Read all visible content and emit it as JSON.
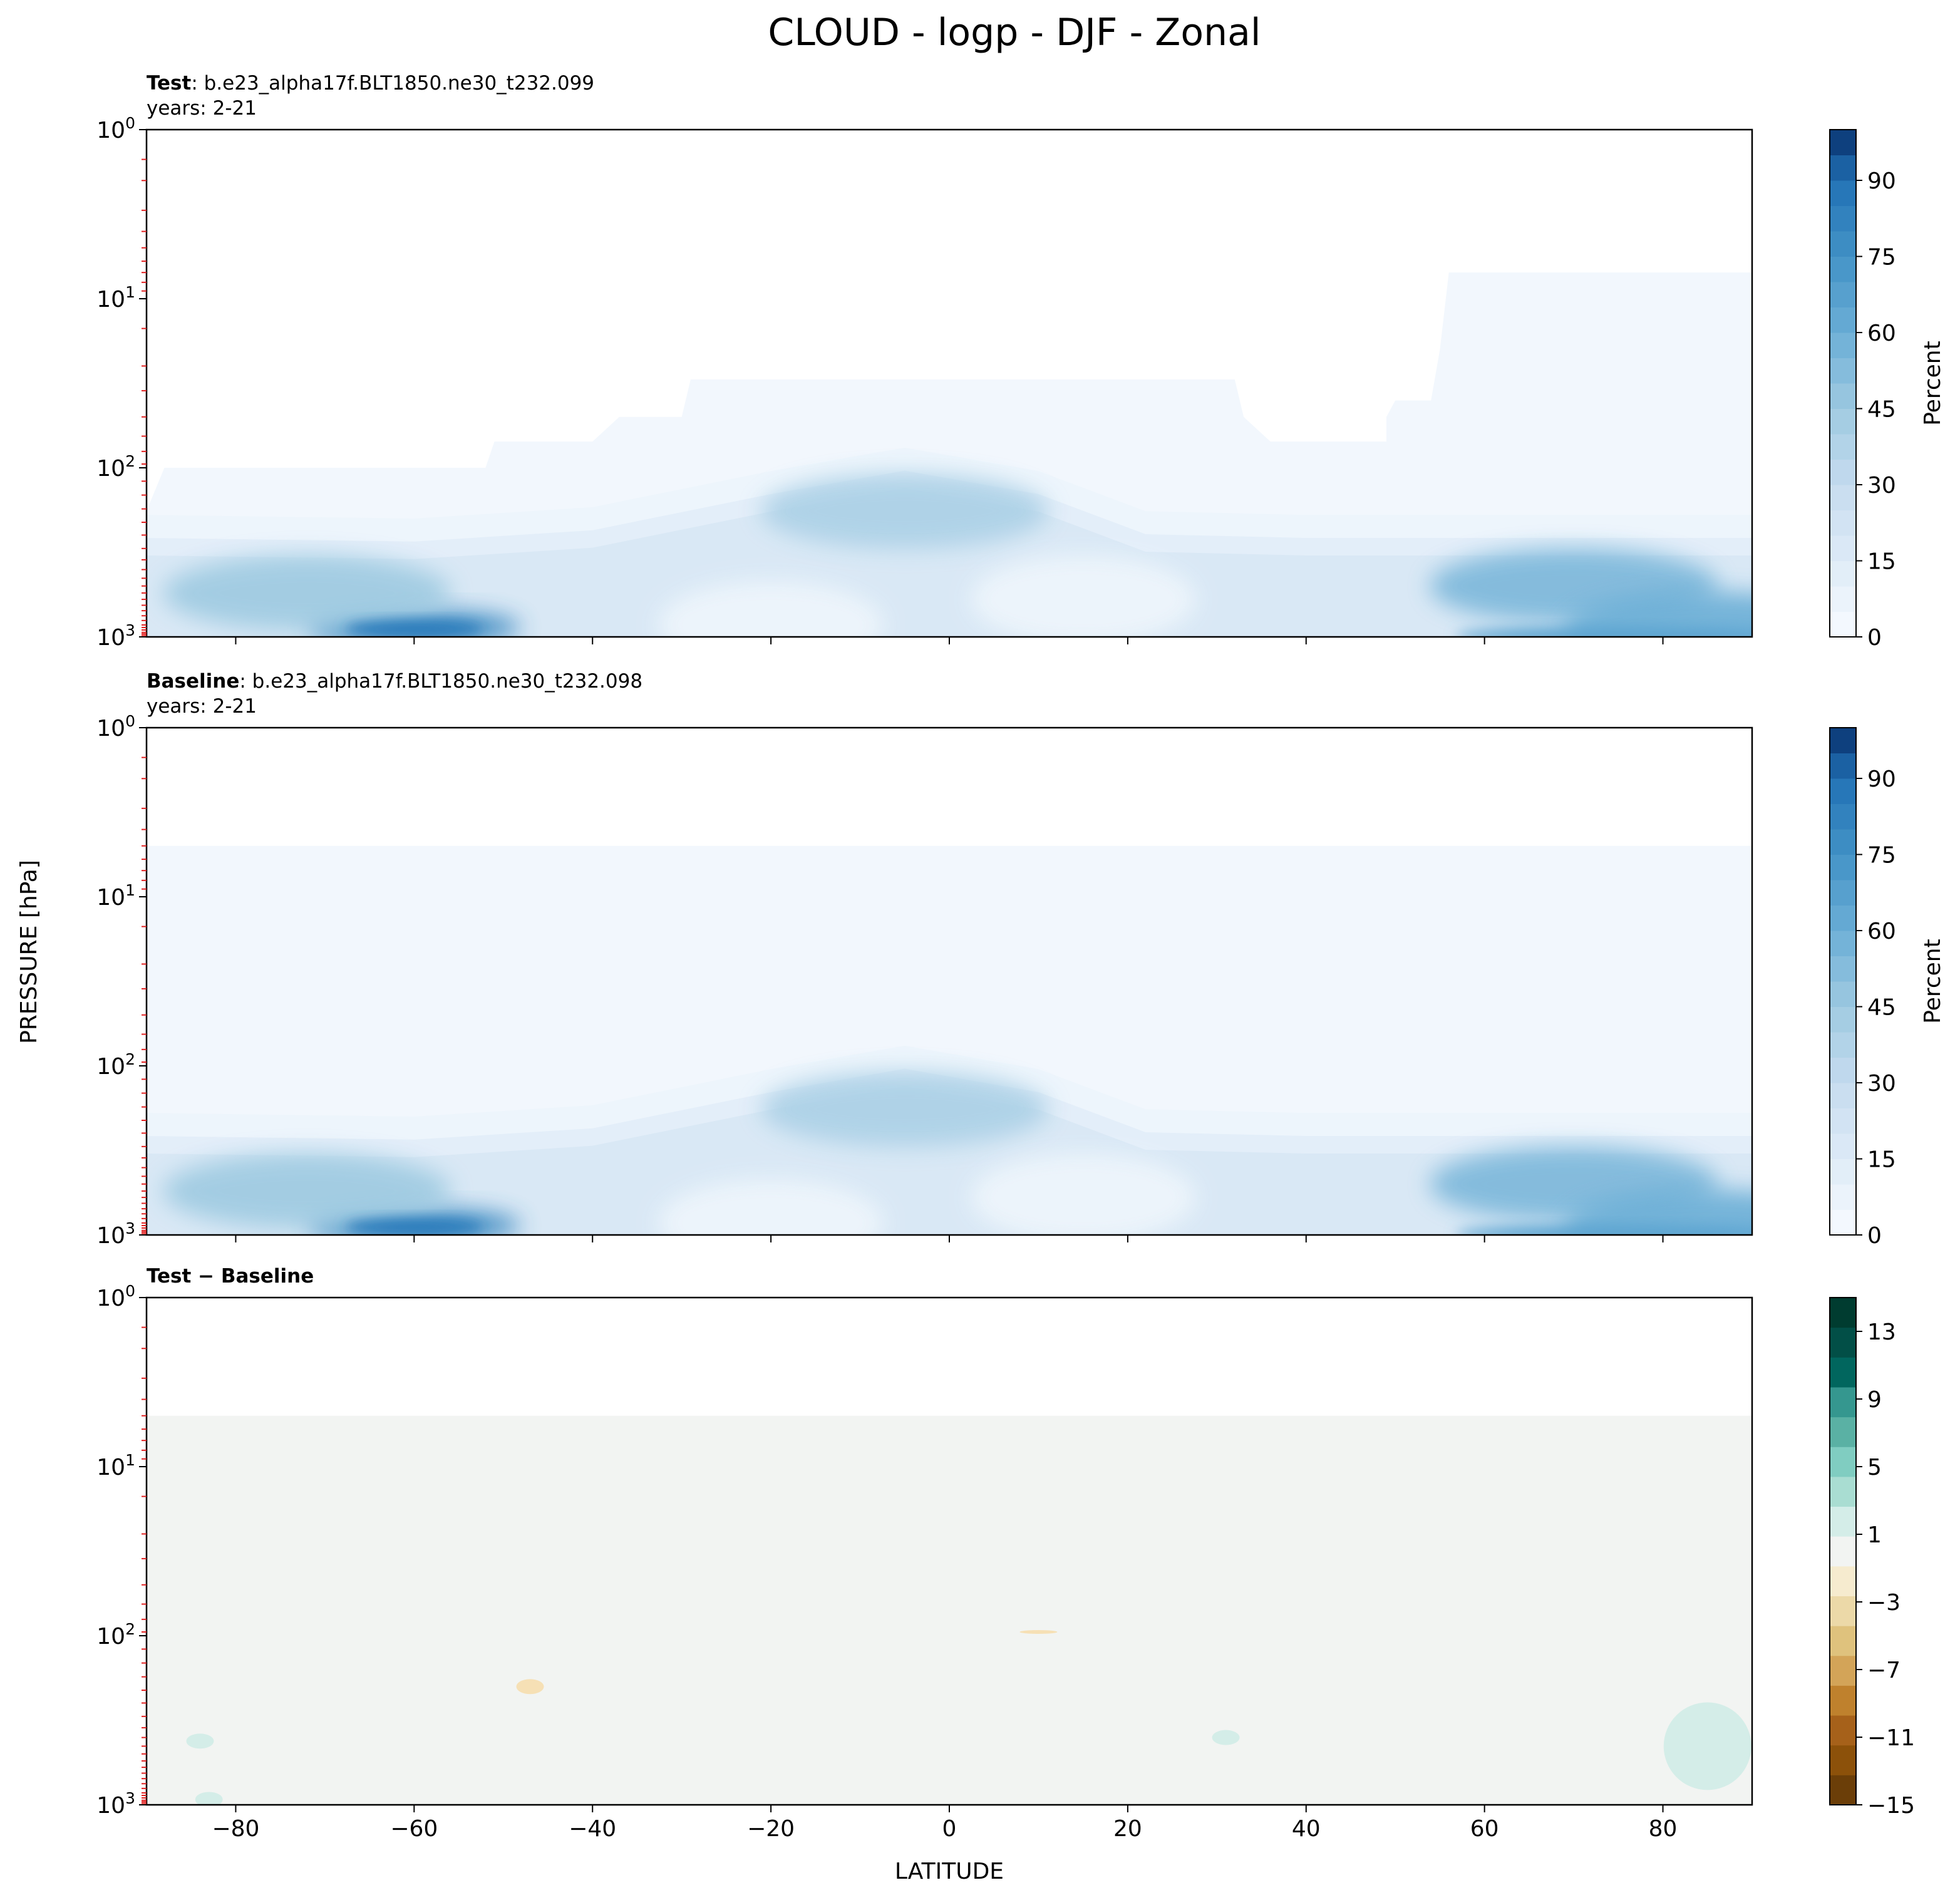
{
  "figure": {
    "title": "CLOUD - logp - DJF - Zonal",
    "ylabel": "PRESSURE [hPa]",
    "xlabel": "LATITUDE"
  },
  "chart_data": [
    {
      "type": "heatmap",
      "panel": "test",
      "title_bold": "Test",
      "title_rest": ": b.e23_alpha17f.BLT1850.ne30_t232.099",
      "subtitle": "years: 2-21",
      "x_ticks": [
        "−80",
        "−60",
        "−40",
        "−20",
        "0",
        "20",
        "40",
        "60",
        "80"
      ],
      "x_tick_values": [
        -80,
        -60,
        -40,
        -20,
        0,
        20,
        40,
        60,
        80
      ],
      "y_ticks": [
        "10^0",
        "10^1",
        "10^2",
        "10^3"
      ],
      "y_scale": "log",
      "y_inverted": true,
      "xlim": [
        -90,
        90
      ],
      "ylim": [
        1000,
        1
      ],
      "colorbar": {
        "label": "Percent",
        "ticks": [
          "0",
          "15",
          "30",
          "45",
          "60",
          "75",
          "90"
        ],
        "tick_values": [
          0,
          15,
          30,
          45,
          60,
          75,
          90
        ],
        "range": [
          0,
          100
        ],
        "levels": 20,
        "colormap": "Blues",
        "colors": [
          "#f7fbff",
          "#e9f2fb",
          "#deebf7",
          "#d3e4f3",
          "#c6dbef",
          "#b4d3e9",
          "#9ecae1",
          "#85bcdc",
          "#6baed6",
          "#5aa2cf",
          "#4292c6",
          "#3282be",
          "#2171b5",
          "#1562a9",
          "#08519c",
          "#08458a",
          "#083a7a",
          "#08306b",
          "#072a60",
          "#062457"
        ]
      },
      "cloud_top_pressure_hPa": [
        [
          -90,
          180
        ],
        [
          -88,
          100
        ],
        [
          -52,
          100
        ],
        [
          -51,
          70
        ],
        [
          -40,
          70
        ],
        [
          -37,
          50
        ],
        [
          -30,
          50
        ],
        [
          -29,
          30
        ],
        [
          32,
          30
        ],
        [
          33,
          50
        ],
        [
          36,
          70
        ],
        [
          49,
          70
        ],
        [
          49,
          50
        ],
        [
          50,
          40
        ],
        [
          54,
          40
        ],
        [
          55,
          20
        ],
        [
          56,
          7
        ],
        [
          90,
          7
        ]
      ],
      "cloud_features": [
        {
          "lat": -60,
          "p_hPa": 880,
          "percent": 80
        },
        {
          "lat": -72,
          "p_hPa": 550,
          "percent": 45
        },
        {
          "lat": -5,
          "p_hPa": 180,
          "percent": 40
        },
        {
          "lat": 70,
          "p_hPa": 500,
          "percent": 55
        },
        {
          "lat": 85,
          "p_hPa": 900,
          "percent": 60
        },
        {
          "lat": 15,
          "p_hPa": 600,
          "percent": 5
        },
        {
          "lat": -20,
          "p_hPa": 850,
          "percent": 5
        }
      ]
    },
    {
      "type": "heatmap",
      "panel": "baseline",
      "title_bold": "Baseline",
      "title_rest": ": b.e23_alpha17f.BLT1850.ne30_t232.098",
      "subtitle": "years: 2-21",
      "x_ticks": [
        "−80",
        "−60",
        "−40",
        "−20",
        "0",
        "20",
        "40",
        "60",
        "80"
      ],
      "x_tick_values": [
        -80,
        -60,
        -40,
        -20,
        0,
        20,
        40,
        60,
        80
      ],
      "y_ticks": [
        "10^0",
        "10^1",
        "10^2",
        "10^3"
      ],
      "y_scale": "log",
      "y_inverted": true,
      "xlim": [
        -90,
        90
      ],
      "ylim": [
        1000,
        1
      ],
      "colorbar": {
        "label": "Percent",
        "ticks": [
          "0",
          "15",
          "30",
          "45",
          "60",
          "75",
          "90"
        ],
        "tick_values": [
          0,
          15,
          30,
          45,
          60,
          75,
          90
        ],
        "range": [
          0,
          100
        ],
        "levels": 20,
        "colormap": "Blues"
      },
      "cloud_top_pressure_hPa": [
        [
          -90,
          5
        ],
        [
          90,
          5
        ]
      ],
      "cloud_features": [
        {
          "lat": -60,
          "p_hPa": 880,
          "percent": 80
        },
        {
          "lat": -72,
          "p_hPa": 550,
          "percent": 45
        },
        {
          "lat": -5,
          "p_hPa": 180,
          "percent": 40
        },
        {
          "lat": 70,
          "p_hPa": 500,
          "percent": 55
        },
        {
          "lat": 85,
          "p_hPa": 900,
          "percent": 60
        },
        {
          "lat": 15,
          "p_hPa": 600,
          "percent": 5
        },
        {
          "lat": -20,
          "p_hPa": 850,
          "percent": 5
        }
      ]
    },
    {
      "type": "heatmap",
      "panel": "difference",
      "title_bold": "Test − Baseline",
      "x_ticks": [
        "−80",
        "−60",
        "−40",
        "−20",
        "0",
        "20",
        "40",
        "60",
        "80"
      ],
      "x_tick_values": [
        -80,
        -60,
        -40,
        -20,
        0,
        20,
        40,
        60,
        80
      ],
      "y_ticks": [
        "10^0",
        "10^1",
        "10^2",
        "10^3"
      ],
      "y_scale": "log",
      "y_inverted": true,
      "xlim": [
        -90,
        90
      ],
      "ylim": [
        1000,
        1
      ],
      "colorbar": {
        "ticks": [
          "13",
          "9",
          "5",
          "1",
          "−3",
          "−7",
          "−11",
          "−15"
        ],
        "tick_values": [
          13,
          9,
          5,
          1,
          -3,
          -7,
          -11,
          -15
        ],
        "range": [
          -15,
          15
        ],
        "levels": 14,
        "colormap": "BrBG",
        "colors": [
          "#6b3e08",
          "#8c510a",
          "#a6611a",
          "#bf812d",
          "#d3a458",
          "#dfc27d",
          "#ecd9a8",
          "#f6ebcf",
          "#f2f4f2",
          "#d4ede8",
          "#a9ddd2",
          "#80cdc1",
          "#5ab1a4",
          "#35978f",
          "#01665e",
          "#024f47",
          "#003c30"
        ]
      },
      "background_value": 0,
      "anomalies": [
        {
          "lat": -84,
          "p_hPa": 420,
          "value": 3
        },
        {
          "lat": -83,
          "p_hPa": 930,
          "value": 3
        },
        {
          "lat": -47,
          "p_hPa": 200,
          "value": -3
        },
        {
          "lat": 31,
          "p_hPa": 400,
          "value": 3
        },
        {
          "lat": 85,
          "p_hPa": 450,
          "value": 3
        },
        {
          "lat": 10,
          "p_hPa": 95,
          "value": -1
        }
      ]
    }
  ]
}
